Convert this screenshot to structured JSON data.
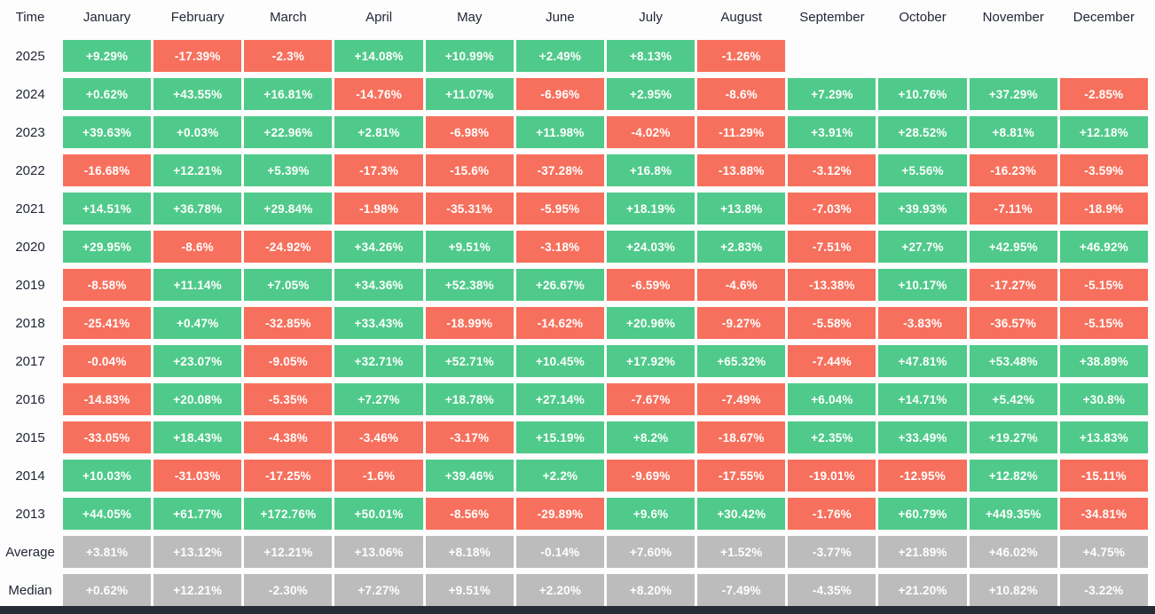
{
  "colors": {
    "positive": "#4fca8a",
    "negative": "#f7705d",
    "stat": "#bcbcbc",
    "background": "#fdfdfd",
    "label_text": "#222736",
    "bottom_bar": "#262b36"
  },
  "chart_data": {
    "type": "heatmap",
    "corner_label": "Time",
    "columns": [
      "January",
      "February",
      "March",
      "April",
      "May",
      "June",
      "July",
      "August",
      "September",
      "October",
      "November",
      "December"
    ],
    "rows": [
      {
        "label": "2025",
        "kind": "year",
        "cells": [
          "+9.29%",
          "-17.39%",
          "-2.3%",
          "+14.08%",
          "+10.99%",
          "+2.49%",
          "+8.13%",
          "-1.26%",
          null,
          null,
          null,
          null
        ]
      },
      {
        "label": "2024",
        "kind": "year",
        "cells": [
          "+0.62%",
          "+43.55%",
          "+16.81%",
          "-14.76%",
          "+11.07%",
          "-6.96%",
          "+2.95%",
          "-8.6%",
          "+7.29%",
          "+10.76%",
          "+37.29%",
          "-2.85%"
        ]
      },
      {
        "label": "2023",
        "kind": "year",
        "cells": [
          "+39.63%",
          "+0.03%",
          "+22.96%",
          "+2.81%",
          "-6.98%",
          "+11.98%",
          "-4.02%",
          "-11.29%",
          "+3.91%",
          "+28.52%",
          "+8.81%",
          "+12.18%"
        ]
      },
      {
        "label": "2022",
        "kind": "year",
        "cells": [
          "-16.68%",
          "+12.21%",
          "+5.39%",
          "-17.3%",
          "-15.6%",
          "-37.28%",
          "+16.8%",
          "-13.88%",
          "-3.12%",
          "+5.56%",
          "-16.23%",
          "-3.59%"
        ]
      },
      {
        "label": "2021",
        "kind": "year",
        "cells": [
          "+14.51%",
          "+36.78%",
          "+29.84%",
          "-1.98%",
          "-35.31%",
          "-5.95%",
          "+18.19%",
          "+13.8%",
          "-7.03%",
          "+39.93%",
          "-7.11%",
          "-18.9%"
        ]
      },
      {
        "label": "2020",
        "kind": "year",
        "cells": [
          "+29.95%",
          "-8.6%",
          "-24.92%",
          "+34.26%",
          "+9.51%",
          "-3.18%",
          "+24.03%",
          "+2.83%",
          "-7.51%",
          "+27.7%",
          "+42.95%",
          "+46.92%"
        ]
      },
      {
        "label": "2019",
        "kind": "year",
        "cells": [
          "-8.58%",
          "+11.14%",
          "+7.05%",
          "+34.36%",
          "+52.38%",
          "+26.67%",
          "-6.59%",
          "-4.6%",
          "-13.38%",
          "+10.17%",
          "-17.27%",
          "-5.15%"
        ]
      },
      {
        "label": "2018",
        "kind": "year",
        "cells": [
          "-25.41%",
          "+0.47%",
          "-32.85%",
          "+33.43%",
          "-18.99%",
          "-14.62%",
          "+20.96%",
          "-9.27%",
          "-5.58%",
          "-3.83%",
          "-36.57%",
          "-5.15%"
        ]
      },
      {
        "label": "2017",
        "kind": "year",
        "cells": [
          "-0.04%",
          "+23.07%",
          "-9.05%",
          "+32.71%",
          "+52.71%",
          "+10.45%",
          "+17.92%",
          "+65.32%",
          "-7.44%",
          "+47.81%",
          "+53.48%",
          "+38.89%"
        ]
      },
      {
        "label": "2016",
        "kind": "year",
        "cells": [
          "-14.83%",
          "+20.08%",
          "-5.35%",
          "+7.27%",
          "+18.78%",
          "+27.14%",
          "-7.67%",
          "-7.49%",
          "+6.04%",
          "+14.71%",
          "+5.42%",
          "+30.8%"
        ]
      },
      {
        "label": "2015",
        "kind": "year",
        "cells": [
          "-33.05%",
          "+18.43%",
          "-4.38%",
          "-3.46%",
          "-3.17%",
          "+15.19%",
          "+8.2%",
          "-18.67%",
          "+2.35%",
          "+33.49%",
          "+19.27%",
          "+13.83%"
        ]
      },
      {
        "label": "2014",
        "kind": "year",
        "cells": [
          "+10.03%",
          "-31.03%",
          "-17.25%",
          "-1.6%",
          "+39.46%",
          "+2.2%",
          "-9.69%",
          "-17.55%",
          "-19.01%",
          "-12.95%",
          "+12.82%",
          "-15.11%"
        ]
      },
      {
        "label": "2013",
        "kind": "year",
        "cells": [
          "+44.05%",
          "+61.77%",
          "+172.76%",
          "+50.01%",
          "-8.56%",
          "-29.89%",
          "+9.6%",
          "+30.42%",
          "-1.76%",
          "+60.79%",
          "+449.35%",
          "-34.81%"
        ]
      },
      {
        "label": "Average",
        "kind": "stat",
        "cells": [
          "+3.81%",
          "+13.12%",
          "+12.21%",
          "+13.06%",
          "+8.18%",
          "-0.14%",
          "+7.60%",
          "+1.52%",
          "-3.77%",
          "+21.89%",
          "+46.02%",
          "+4.75%"
        ]
      },
      {
        "label": "Median",
        "kind": "stat",
        "cells": [
          "+0.62%",
          "+12.21%",
          "-2.30%",
          "+7.27%",
          "+9.51%",
          "+2.20%",
          "+8.20%",
          "-7.49%",
          "-4.35%",
          "+21.20%",
          "+10.82%",
          "-3.22%"
        ]
      }
    ]
  }
}
